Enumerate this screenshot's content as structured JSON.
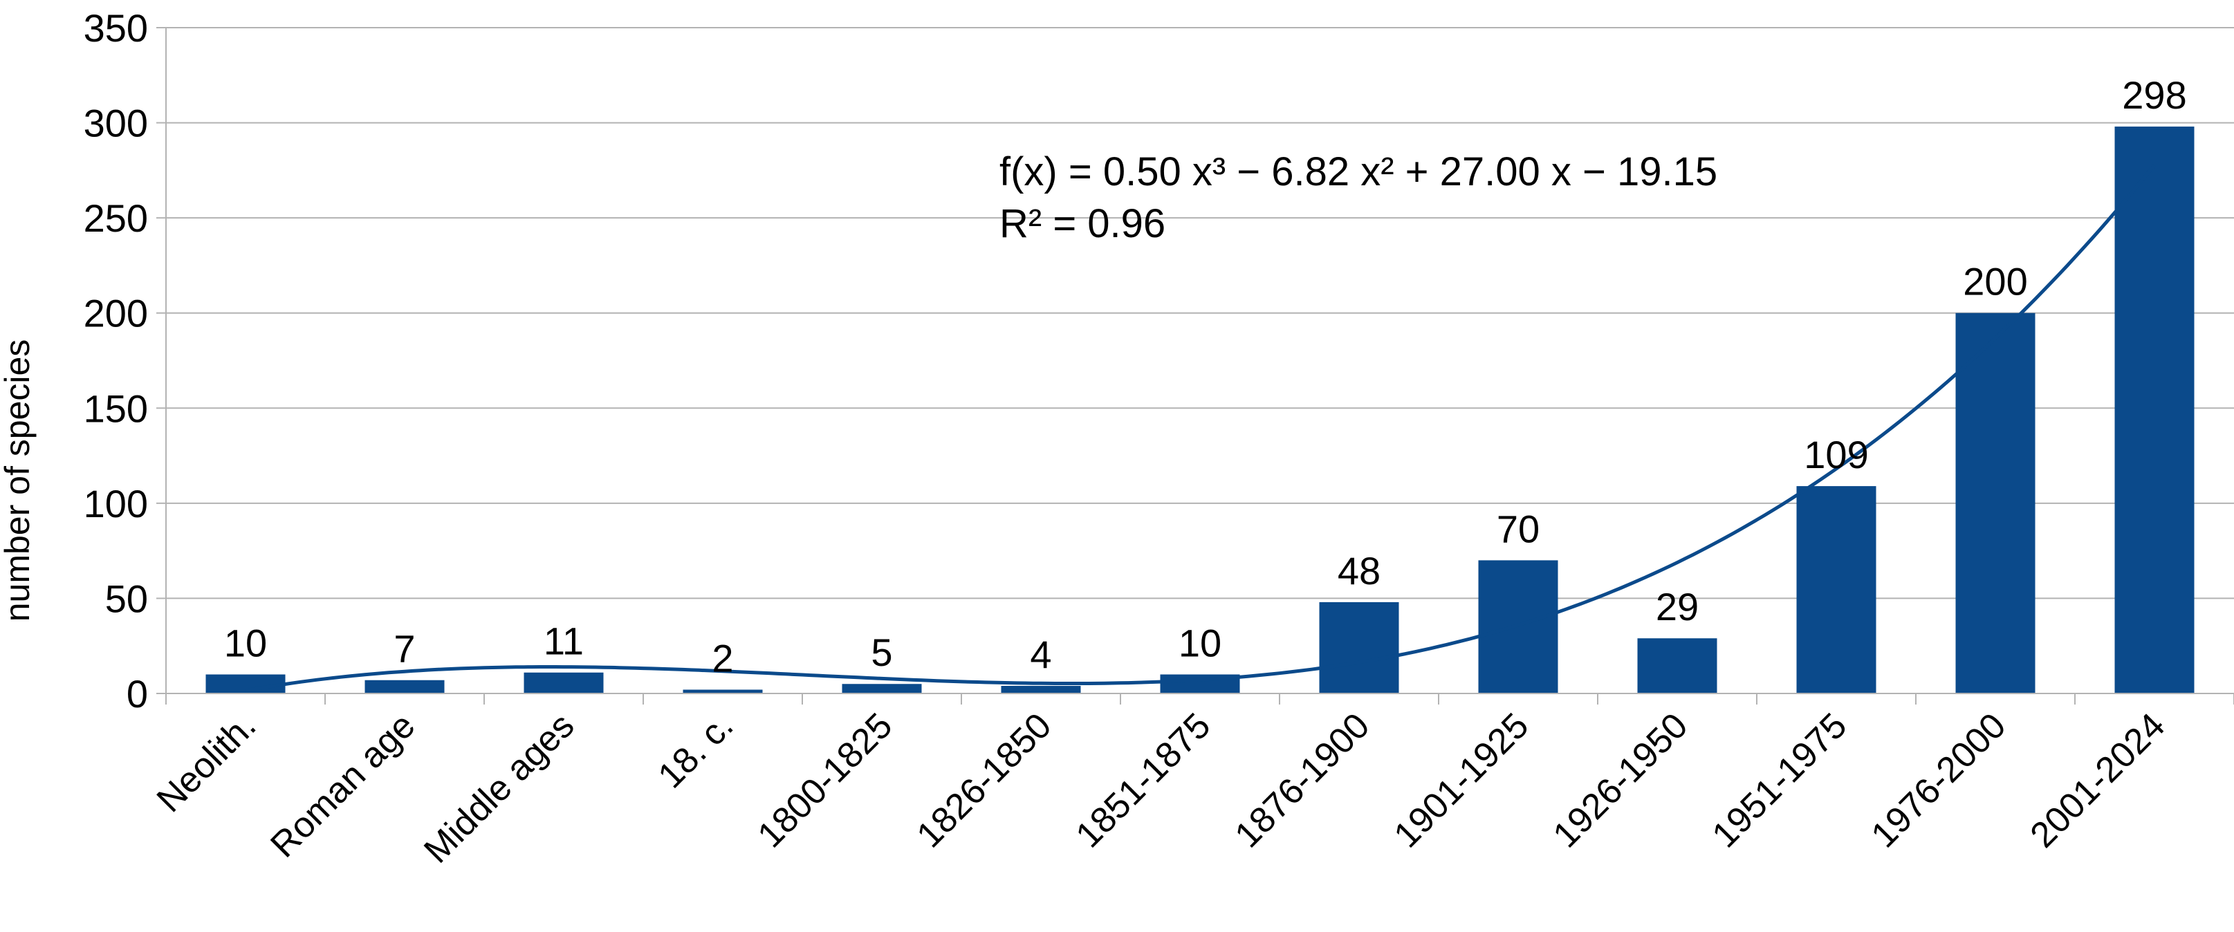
{
  "chart_data": {
    "type": "bar",
    "title": "",
    "xlabel": "",
    "ylabel": "number of species",
    "categories": [
      "Neolith.",
      "Roman age",
      "Middle ages",
      "18. c.",
      "1800-1825",
      "1826-1850",
      "1851-1875",
      "1876-1900",
      "1901-1925",
      "1926-1950",
      "1951-1975",
      "1976-2000",
      "2001-2024"
    ],
    "values": [
      10,
      7,
      11,
      2,
      5,
      4,
      10,
      48,
      70,
      29,
      109,
      200,
      298
    ],
    "data_labels": [
      "10",
      "7",
      "11",
      "2",
      "5",
      "4",
      "10",
      "48",
      "70",
      "29",
      "109",
      "200",
      "298"
    ],
    "ylim": [
      0,
      350
    ],
    "yticks": [
      0,
      50,
      100,
      150,
      200,
      250,
      300,
      350
    ],
    "grid": true,
    "legend": "none",
    "bar_color": "#0b4a8b",
    "trendline": {
      "type": "polynomial",
      "order": 3,
      "coefficients": [
        0.5,
        -6.82,
        27.0,
        -19.15
      ],
      "equation": "f(x) = 0.50 x³ − 6.82 x² + 27.00 x − 19.15",
      "r_squared": "R² = 0.96",
      "color": "#0b4a8b"
    }
  }
}
